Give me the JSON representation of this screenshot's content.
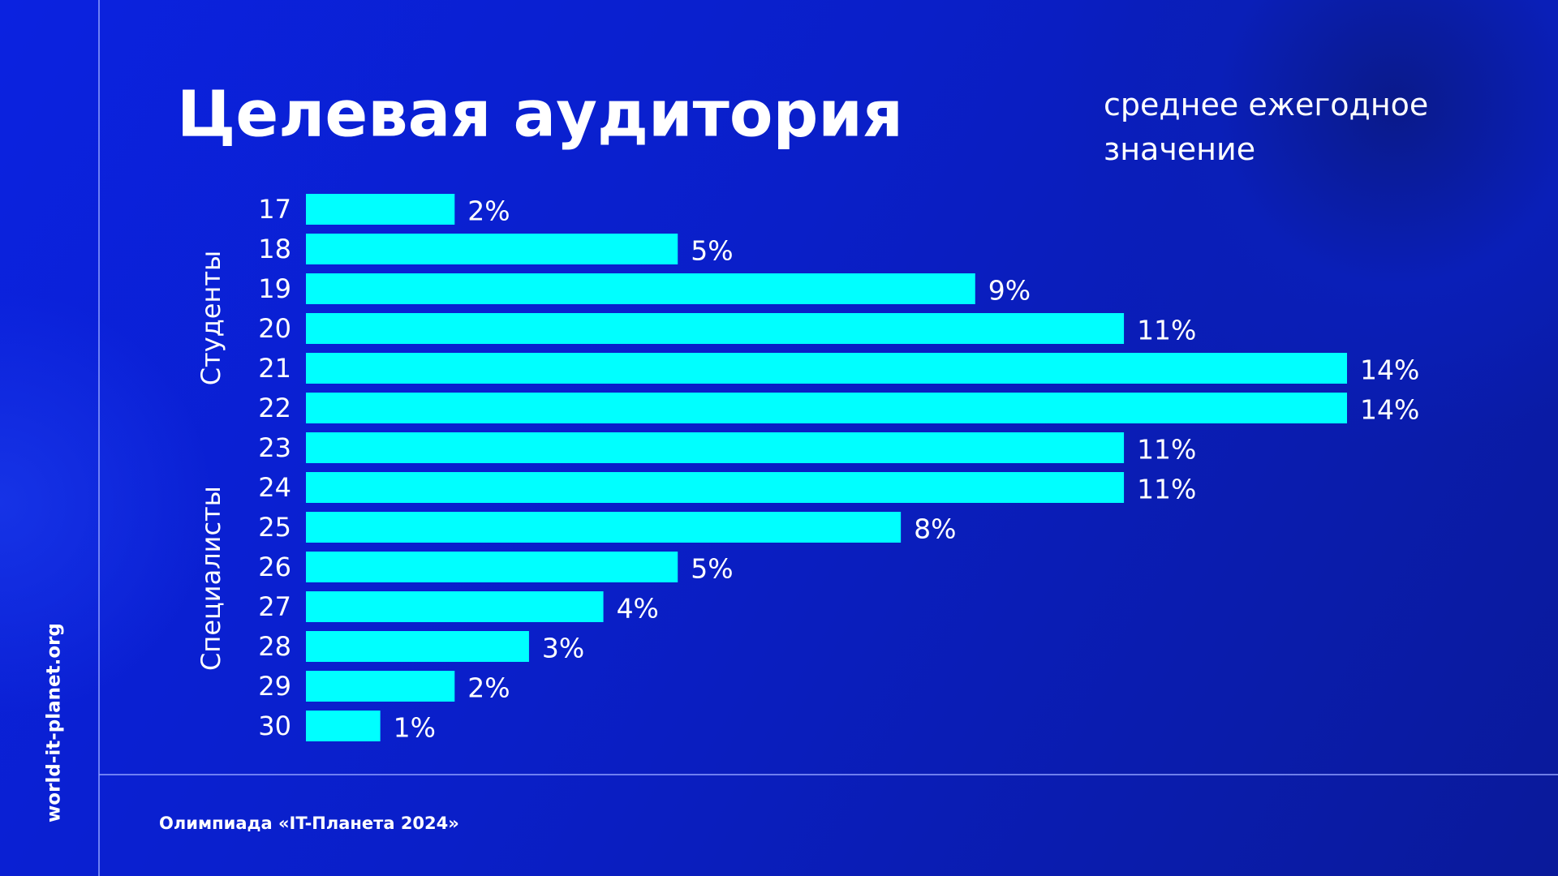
{
  "chart_data": {
    "type": "bar",
    "orientation": "horizontal",
    "title": "Целевая аудитория",
    "subtitle": "среднее ежегодное значение",
    "categories": [
      "17",
      "18",
      "19",
      "20",
      "21",
      "22",
      "23",
      "24",
      "25",
      "26",
      "27",
      "28",
      "29",
      "30"
    ],
    "values": [
      2,
      5,
      9,
      11,
      14,
      14,
      11,
      11,
      8,
      5,
      4,
      3,
      2,
      1
    ],
    "value_labels": [
      "2%",
      "5%",
      "9%",
      "11%",
      "14%",
      "14%",
      "11%",
      "11%",
      "8%",
      "5%",
      "4%",
      "3%",
      "2%",
      "1%"
    ],
    "color": "#00ffff",
    "groups": [
      "Студенты",
      "Специалисты"
    ]
  },
  "footer": "Олимпиада «IT-Планета 2024»",
  "site": "world-it-planet.org"
}
